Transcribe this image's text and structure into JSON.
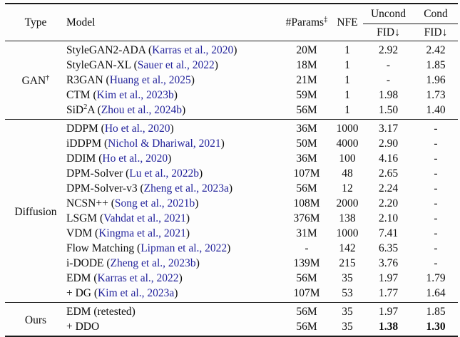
{
  "colors": {
    "background": "#fdfdfd",
    "text": "#0d0d0d",
    "rule": "#1a1a1a",
    "citation": "#23239b"
  },
  "header": {
    "type": "Type",
    "model": "Model",
    "params": "#Params",
    "params_sup": "‡",
    "nfe": "NFE",
    "uncond": "Uncond",
    "cond": "Cond",
    "fid": "FID↓"
  },
  "sections": [
    {
      "id": "gan",
      "type_label": "GAN{†}",
      "rows": [
        {
          "model": "StyleGAN2-ADA",
          "cite": "Karras et al., 2020",
          "params": "20M",
          "nfe": "1",
          "uncond": "2.92",
          "cond": "2.42"
        },
        {
          "model": "StyleGAN-XL",
          "cite": "Sauer et al., 2022",
          "params": "18M",
          "nfe": "1",
          "uncond": "-",
          "cond": "1.85"
        },
        {
          "model": "R3GAN",
          "cite": "Huang et al., 2025",
          "params": "21M",
          "nfe": "1",
          "uncond": "-",
          "cond": "1.96"
        },
        {
          "model": "CTM",
          "cite": "Kim et al., 2023b",
          "params": "59M",
          "nfe": "1",
          "uncond": "1.98",
          "cond": "1.73"
        },
        {
          "model": "SiD{2}A",
          "cite": "Zhou et al., 2024b",
          "params": "56M",
          "nfe": "1",
          "uncond": "1.50",
          "cond": "1.40"
        }
      ]
    },
    {
      "id": "diffusion",
      "type_label": "Diffusion",
      "rows": [
        {
          "model": "DDPM",
          "cite": "Ho et al., 2020",
          "params": "36M",
          "nfe": "1000",
          "uncond": "3.17",
          "cond": "-"
        },
        {
          "model": "iDDPM",
          "cite": "Nichol & Dhariwal, 2021",
          "params": "50M",
          "nfe": "4000",
          "uncond": "2.90",
          "cond": "-"
        },
        {
          "model": "DDIM",
          "cite": "Ho et al., 2020",
          "params": "36M",
          "nfe": "100",
          "uncond": "4.16",
          "cond": "-"
        },
        {
          "model": "DPM-Solver",
          "cite": "Lu et al., 2022b",
          "params": "107M",
          "nfe": "48",
          "uncond": "2.65",
          "cond": "-"
        },
        {
          "model": "DPM-Solver-v3",
          "cite": "Zheng et al., 2023a",
          "params": "56M",
          "nfe": "12",
          "uncond": "2.24",
          "cond": "-"
        },
        {
          "model": "NCSN++",
          "cite": "Song et al., 2021b",
          "params": "108M",
          "nfe": "2000",
          "uncond": "2.20",
          "cond": "-"
        },
        {
          "model": "LSGM",
          "cite": "Vahdat et al., 2021",
          "params": "376M",
          "nfe": "138",
          "uncond": "2.10",
          "cond": "-"
        },
        {
          "model": "VDM",
          "cite": "Kingma et al., 2021",
          "params": "31M",
          "nfe": "1000",
          "uncond": "7.41",
          "cond": "-"
        },
        {
          "model": "Flow Matching",
          "cite": "Lipman et al., 2022",
          "params": "-",
          "nfe": "142",
          "uncond": "6.35",
          "cond": "-"
        },
        {
          "model": "i-DODE",
          "cite": "Zheng et al., 2023b",
          "params": "139M",
          "nfe": "215",
          "uncond": "3.76",
          "cond": "-"
        },
        {
          "model": "EDM",
          "cite": "Karras et al., 2022",
          "params": "56M",
          "nfe": "35",
          "uncond": "1.97",
          "cond": "1.79"
        },
        {
          "model": "+ DG",
          "cite": "Kim et al., 2023a",
          "params": "107M",
          "nfe": "53",
          "uncond": "1.77",
          "cond": "1.64"
        }
      ]
    },
    {
      "id": "ours",
      "type_label": "Ours",
      "rows": [
        {
          "model": "EDM (retested)",
          "cite": null,
          "params": "56M",
          "nfe": "35",
          "uncond": "1.97",
          "cond": "1.85"
        },
        {
          "model": "+ DDO",
          "cite": null,
          "params": "56M",
          "nfe": "35",
          "uncond": "1.38",
          "cond": "1.30",
          "bold": true
        }
      ]
    }
  ]
}
